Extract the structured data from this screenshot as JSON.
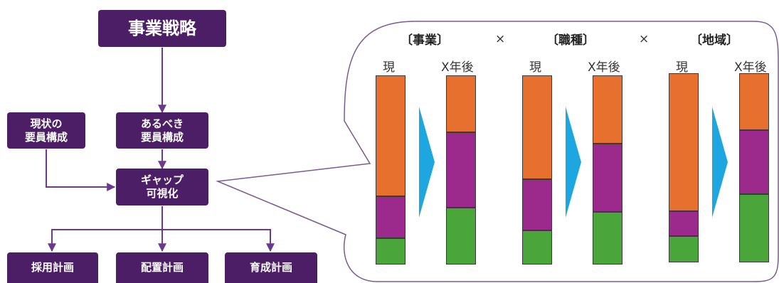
{
  "flow": {
    "strategy": "事業戦略",
    "current_line1": "現状の",
    "current_line2": "要員構成",
    "ideal_line1": "あるべき",
    "ideal_line2": "要員構成",
    "gap_line1": "ギャップ",
    "gap_line2": "可視化",
    "hiring": "採用計画",
    "placement": "配置計画",
    "training": "育成計画"
  },
  "callout": {
    "headers": [
      "〔事業〕",
      "〔職種〕",
      "〔地域〕"
    ],
    "times_symbol": "×",
    "label_now": "現",
    "label_future": "X年後"
  },
  "colors": {
    "box": "#4b1e66",
    "arrow": "#6b3a8c",
    "orange": "#e8702e",
    "purple": "#9b2a8c",
    "green": "#4aa63a",
    "chevron": "#1ea6e0"
  },
  "chart_data": {
    "type": "bar",
    "stacked": true,
    "categories": [
      "事業 現",
      "事業 X年後",
      "職種 現",
      "職種 X年後",
      "地域 現",
      "地域 X年後"
    ],
    "series": [
      {
        "values": [
          0.64,
          0.3,
          0.55,
          0.36,
          0.73,
          0.3
        ],
        "color": "#e8702e"
      },
      {
        "values": [
          0.22,
          0.4,
          0.27,
          0.36,
          0.13,
          0.34
        ],
        "color": "#9b2a8c"
      },
      {
        "values": [
          0.14,
          0.3,
          0.18,
          0.28,
          0.14,
          0.36
        ],
        "color": "#4aa63a"
      }
    ]
  }
}
